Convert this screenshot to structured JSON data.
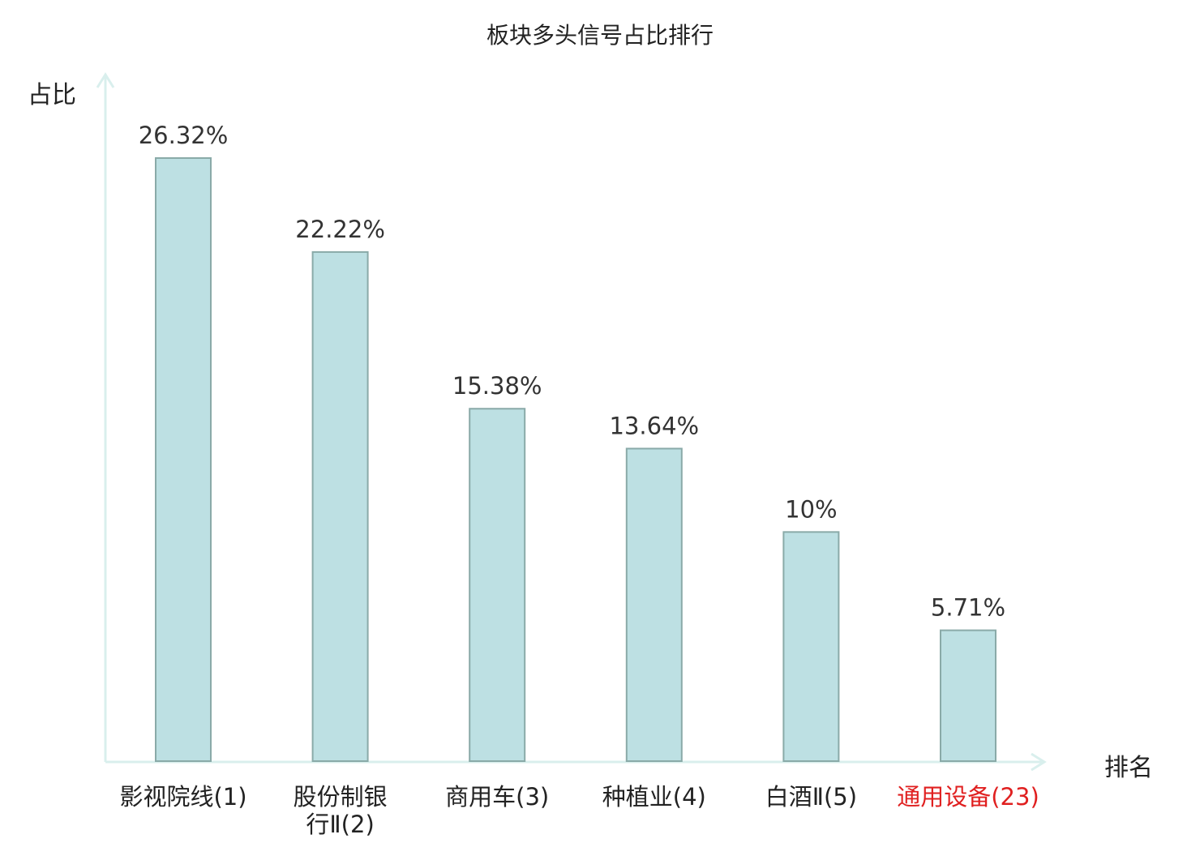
{
  "chart_data": {
    "type": "bar",
    "title": "板块多头信号占比排行",
    "ylabel": "占比",
    "xlabel": "排名",
    "categories": [
      "影视院线(1)",
      "股份制银行Ⅱ(2)",
      "商用车(3)",
      "种植业(4)",
      "白酒Ⅱ(5)",
      "通用设备(23)"
    ],
    "values": [
      26.32,
      22.22,
      15.38,
      13.64,
      10,
      5.71
    ],
    "value_labels": [
      "26.32%",
      "22.22%",
      "15.38%",
      "13.64%",
      "10%",
      "5.71%"
    ],
    "highlight_index": 5,
    "ylim": [
      0,
      30
    ],
    "grid": false,
    "legend": "none",
    "colors": {
      "bar_fill": "#bde0e3",
      "bar_stroke": "#8aaaa8",
      "axis": "#d9efed",
      "highlight_text": "#e02020"
    }
  }
}
